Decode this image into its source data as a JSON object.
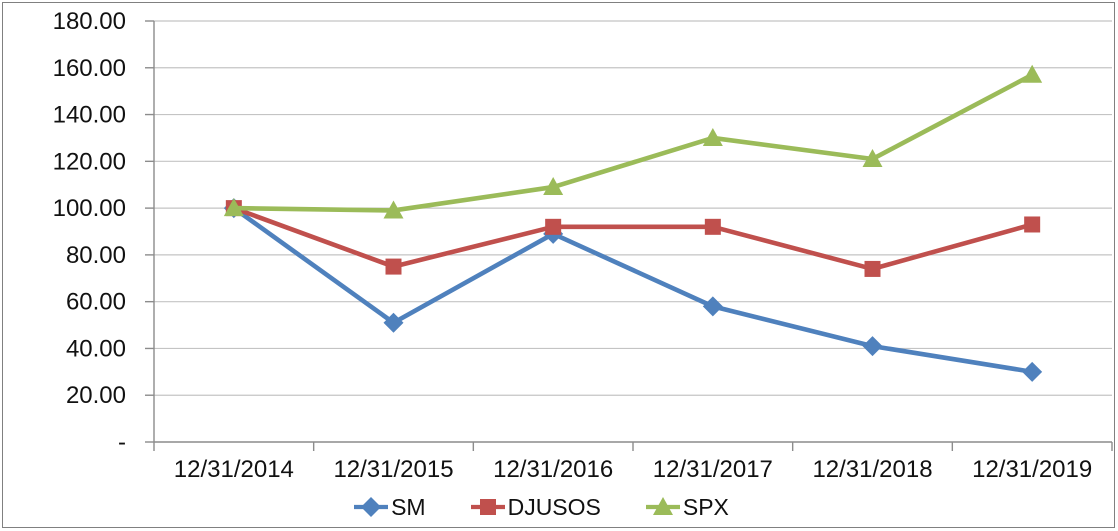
{
  "chart_data": {
    "type": "line",
    "title": "",
    "categories": [
      "12/31/2014",
      "12/31/2015",
      "12/31/2016",
      "12/31/2017",
      "12/31/2018",
      "12/31/2019"
    ],
    "series": [
      {
        "name": "SM",
        "color": "#4F81BD",
        "marker": "diamond",
        "values": [
          100,
          51,
          89,
          58,
          41,
          30
        ]
      },
      {
        "name": "DJUSOS",
        "color": "#C0504D",
        "marker": "square",
        "values": [
          100,
          75,
          92,
          92,
          74,
          93
        ]
      },
      {
        "name": "SPX",
        "color": "#9BBB59",
        "marker": "triangle",
        "values": [
          100,
          99,
          109,
          130,
          121,
          157
        ]
      }
    ],
    "xlabel": "",
    "ylabel": "",
    "ylim": [
      0,
      180
    ],
    "y_step": 20,
    "y_tick_labels": [
      "-",
      "20.00",
      "40.00",
      "60.00",
      "80.00",
      "100.00",
      "120.00",
      "140.00",
      "160.00",
      "180.00"
    ],
    "grid": true,
    "legend_position": "bottom",
    "colors": {
      "gridline": "#C4C4C4",
      "axis": "#8C8C8C",
      "text": "#111111",
      "frame_border": "#808080",
      "background": "#FFFFFF"
    }
  }
}
